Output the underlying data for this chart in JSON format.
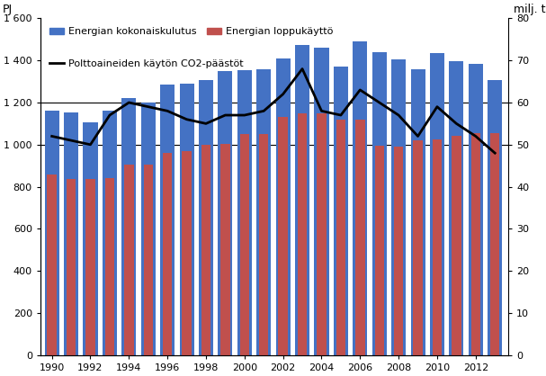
{
  "years": [
    1990,
    1991,
    1992,
    1993,
    1994,
    1995,
    1996,
    1997,
    1998,
    1999,
    2000,
    2001,
    2002,
    2003,
    2004,
    2005,
    2006,
    2007,
    2008,
    2009,
    2010,
    2011,
    2012,
    2013
  ],
  "total_energy": [
    1160,
    1155,
    1105,
    1160,
    1220,
    1200,
    1285,
    1290,
    1305,
    1350,
    1355,
    1360,
    1410,
    1475,
    1460,
    1370,
    1490,
    1440,
    1405,
    1360,
    1435,
    1395,
    1385,
    1305
  ],
  "final_energy": [
    860,
    835,
    835,
    840,
    905,
    905,
    960,
    970,
    1000,
    1005,
    1050,
    1050,
    1130,
    1150,
    1150,
    1120,
    1120,
    995,
    990,
    1020,
    1025,
    1040,
    1055,
    1055
  ],
  "co2_emissions": [
    52,
    51,
    50,
    57,
    60,
    59,
    58,
    56,
    55,
    57,
    57,
    58,
    62,
    68,
    58,
    57,
    63,
    60,
    57,
    52,
    59,
    55,
    52,
    48
  ],
  "bar_color_blue": "#4472c4",
  "bar_color_red": "#c0504d",
  "line_color": "#000000",
  "ylabel_left": "PJ",
  "ylabel_right": "milj. t",
  "ylim_left": [
    0,
    1600
  ],
  "ylim_right": [
    0,
    80
  ],
  "yticks_left": [
    0,
    200,
    400,
    600,
    800,
    1000,
    1200,
    1400,
    1600
  ],
  "yticks_right": [
    0,
    10,
    20,
    30,
    40,
    50,
    60,
    70,
    80
  ],
  "legend_total": "Energian kokonaiskulutus",
  "legend_final": "Energian loppukäyttö",
  "legend_co2": "Polttoaineiden käytön CO2-päästöt",
  "hlines": [
    1000,
    1200
  ],
  "background_color": "#ffffff",
  "figsize": [
    6.07,
    4.18
  ],
  "dpi": 100
}
